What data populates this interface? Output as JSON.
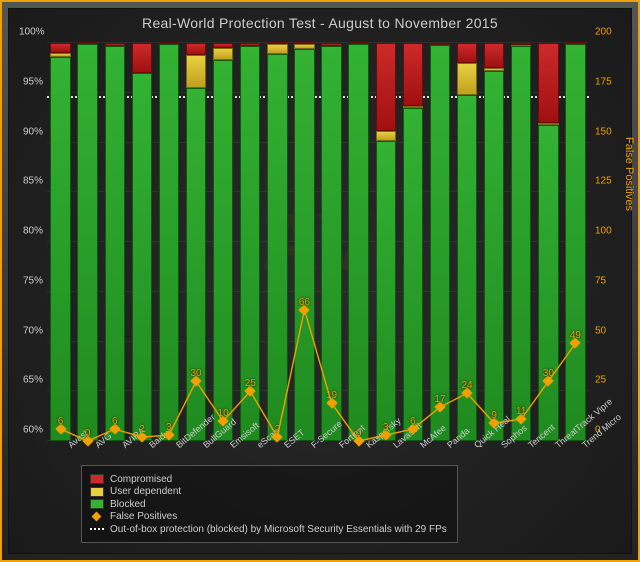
{
  "chart": {
    "type": "stacked-bar-with-secondary-line",
    "title": "Real-World Protection Test - August to November 2015",
    "background_gradient": [
      "#2a2a2a",
      "#1a1a1a"
    ],
    "frame_border_color": "#f0a000",
    "watermark": "AV",
    "y_left": {
      "min": 60,
      "max": 100,
      "tick_step": 5,
      "label_color": "#cccccc",
      "suffix": "%"
    },
    "y_right": {
      "min": 0,
      "max": 200,
      "tick_step": 25,
      "title": "False Positives",
      "label_color": "#f0a000"
    },
    "reference_line": {
      "value_left": 94.5,
      "style": "dotted",
      "color": "#ffffff"
    },
    "bar_gap_ratio": 0.25,
    "series_colors": {
      "blocked": "#33b233",
      "user_dependent": "#e8d040",
      "compromised": "#cc2a2a",
      "false_positives": "#f0a000"
    },
    "categories": [
      "Avast",
      "AVG",
      "AVIRA",
      "Baidu",
      "BitDefender",
      "BullGuard",
      "Emsisoft",
      "eScan",
      "ESET",
      "F-Secure",
      "Fortinet",
      "Kaspersky",
      "Lavasoft",
      "McAfee",
      "Panda",
      "Quick Heal",
      "Sophos",
      "Tencent",
      "ThreatTrack Vipre",
      "Trend Micro"
    ],
    "stacks": [
      {
        "blocked": 98.6,
        "user": 0.4,
        "comp": 1.0
      },
      {
        "blocked": 99.9,
        "user": 0.0,
        "comp": 0.1
      },
      {
        "blocked": 99.7,
        "user": 0.0,
        "comp": 0.3
      },
      {
        "blocked": 97.0,
        "user": 0.0,
        "comp": 3.0
      },
      {
        "blocked": 99.9,
        "user": 0.0,
        "comp": 0.1
      },
      {
        "blocked": 95.5,
        "user": 3.3,
        "comp": 1.2
      },
      {
        "blocked": 98.3,
        "user": 1.2,
        "comp": 0.5
      },
      {
        "blocked": 99.7,
        "user": 0.0,
        "comp": 0.3
      },
      {
        "blocked": 98.9,
        "user": 1.0,
        "comp": 0.1
      },
      {
        "blocked": 99.4,
        "user": 0.5,
        "comp": 0.1
      },
      {
        "blocked": 99.7,
        "user": 0.0,
        "comp": 0.3
      },
      {
        "blocked": 99.9,
        "user": 0.0,
        "comp": 0.1
      },
      {
        "blocked": 90.2,
        "user": 1.0,
        "comp": 8.8
      },
      {
        "blocked": 93.5,
        "user": 0.2,
        "comp": 6.3
      },
      {
        "blocked": 99.8,
        "user": 0.0,
        "comp": 0.2
      },
      {
        "blocked": 94.8,
        "user": 3.2,
        "comp": 2.0
      },
      {
        "blocked": 97.2,
        "user": 0.3,
        "comp": 2.5
      },
      {
        "blocked": 99.7,
        "user": 0.1,
        "comp": 0.2
      },
      {
        "blocked": 91.8,
        "user": 0.2,
        "comp": 8.0
      },
      {
        "blocked": 99.9,
        "user": 0.0,
        "comp": 0.1
      }
    ],
    "false_positives": [
      6,
      0,
      6,
      2,
      3,
      30,
      10,
      25,
      2,
      66,
      19,
      0,
      3,
      6,
      17,
      24,
      9,
      11,
      30,
      49
    ]
  },
  "legend": {
    "items": [
      {
        "key": "comp",
        "label": "Compromised"
      },
      {
        "key": "user",
        "label": "User dependent"
      },
      {
        "key": "blocked",
        "label": "Blocked"
      },
      {
        "key": "fp",
        "label": "False Positives"
      },
      {
        "key": "dot",
        "label": "Out-of-box protection (blocked) by Microsoft Security Essentials with 29 FPs"
      }
    ]
  }
}
